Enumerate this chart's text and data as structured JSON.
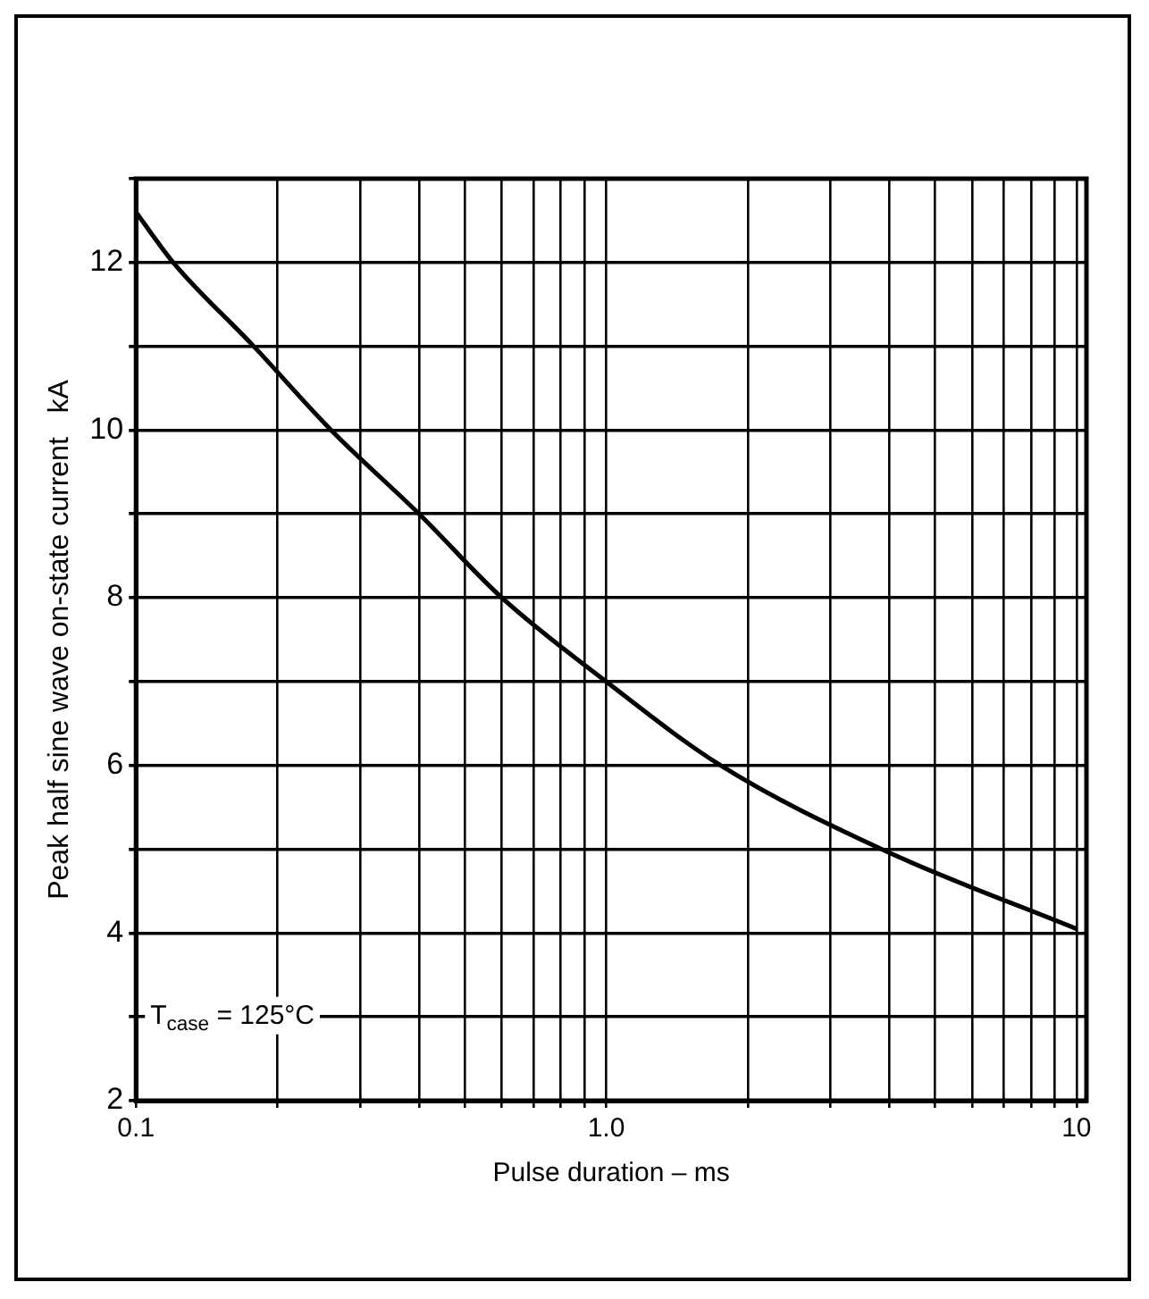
{
  "chart_data": {
    "type": "line",
    "xlabel": "Pulse duration – ms",
    "ylabel": "Peak half sine wave on-state current   kA",
    "x": [
      0.1,
      0.12,
      0.178,
      0.26,
      0.4,
      0.6,
      1.0,
      1.75,
      3.85,
      10
    ],
    "series": [
      {
        "color": "#000000",
        "values": [
          12.6,
          12,
          11,
          10,
          9,
          8,
          7,
          6,
          5,
          4.05
        ]
      }
    ],
    "log": "x",
    "xlim": [
      0.1,
      10.5
    ],
    "ylim": [
      2,
      13
    ],
    "xticks": [
      {
        "value": 0.1,
        "label": "0.1"
      },
      {
        "value": 0.2,
        "label": null
      },
      {
        "value": 0.3,
        "label": null
      },
      {
        "value": 0.4,
        "label": null
      },
      {
        "value": 0.5,
        "label": null
      },
      {
        "value": 0.6,
        "label": null
      },
      {
        "value": 0.7,
        "label": null
      },
      {
        "value": 0.8,
        "label": null
      },
      {
        "value": 0.9,
        "label": null
      },
      {
        "value": 1,
        "label": "1.0"
      },
      {
        "value": 2,
        "label": null
      },
      {
        "value": 3,
        "label": null
      },
      {
        "value": 4,
        "label": null
      },
      {
        "value": 5,
        "label": null
      },
      {
        "value": 6,
        "label": null
      },
      {
        "value": 7,
        "label": null
      },
      {
        "value": 8,
        "label": null
      },
      {
        "value": 9,
        "label": null
      },
      10
    ],
    "yticks": [
      2,
      {
        "value": 3,
        "label": null
      },
      4,
      {
        "value": 5,
        "label": null
      },
      6,
      {
        "value": 7,
        "label": null
      },
      8,
      {
        "value": 9,
        "label": null
      },
      10,
      {
        "value": 11,
        "label": null
      },
      12,
      {
        "value": 13,
        "label": null
      }
    ],
    "grid": true,
    "marker": "none",
    "line_style": "solid",
    "annotations": [
      "T$_{case}$ = 125°C"
    ]
  }
}
